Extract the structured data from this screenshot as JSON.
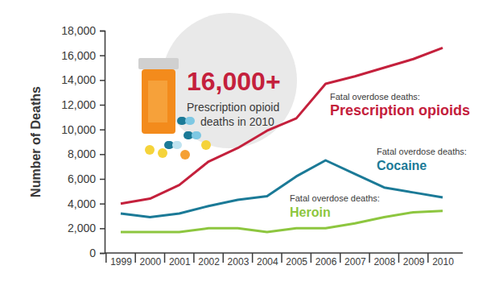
{
  "chart_data": {
    "type": "line",
    "y_label": "Number of Deaths",
    "categories": [
      "1999",
      "2000",
      "2001",
      "2002",
      "2003",
      "2004",
      "2005",
      "2006",
      "2007",
      "2008",
      "2009",
      "2010"
    ],
    "series": [
      {
        "name": "Prescription opioids",
        "color": "#c4203c",
        "values": [
          4000,
          4400,
          5500,
          7400,
          8500,
          9900,
          10900,
          13700,
          14300,
          15000,
          15700,
          16600
        ]
      },
      {
        "name": "Cocaine",
        "color": "#1b7a97",
        "values": [
          3200,
          2900,
          3200,
          3800,
          4300,
          4600,
          6200,
          7500,
          6400,
          5300,
          4900,
          4500
        ]
      },
      {
        "name": "Heroin",
        "color": "#8dc63f",
        "values": [
          1700,
          1700,
          1700,
          2000,
          2000,
          1700,
          2000,
          2000,
          2400,
          2900,
          3300,
          3400
        ]
      }
    ],
    "ylim": [
      0,
      18000
    ],
    "yticks": [
      0,
      {
        "value": 2000,
        "label": "2,000"
      },
      {
        "value": 4000,
        "label": "4,000"
      },
      {
        "value": 6000,
        "label": "6,000"
      },
      {
        "value": 8000,
        "label": "8,000"
      },
      {
        "value": 10000,
        "label": "10,000"
      },
      {
        "value": 12000,
        "label": "12,000"
      },
      {
        "value": 14000,
        "label": "14,000"
      },
      {
        "value": 16000,
        "label": "16,000"
      },
      {
        "value": 18000,
        "label": "18,000"
      }
    ],
    "grid": false,
    "annotations": [
      "16,000+",
      "Prescription opioid",
      "deaths in 2010",
      "Fatal overdose deaths:",
      "Fatal overdose deaths:",
      "Fatal overdose deaths:"
    ]
  }
}
